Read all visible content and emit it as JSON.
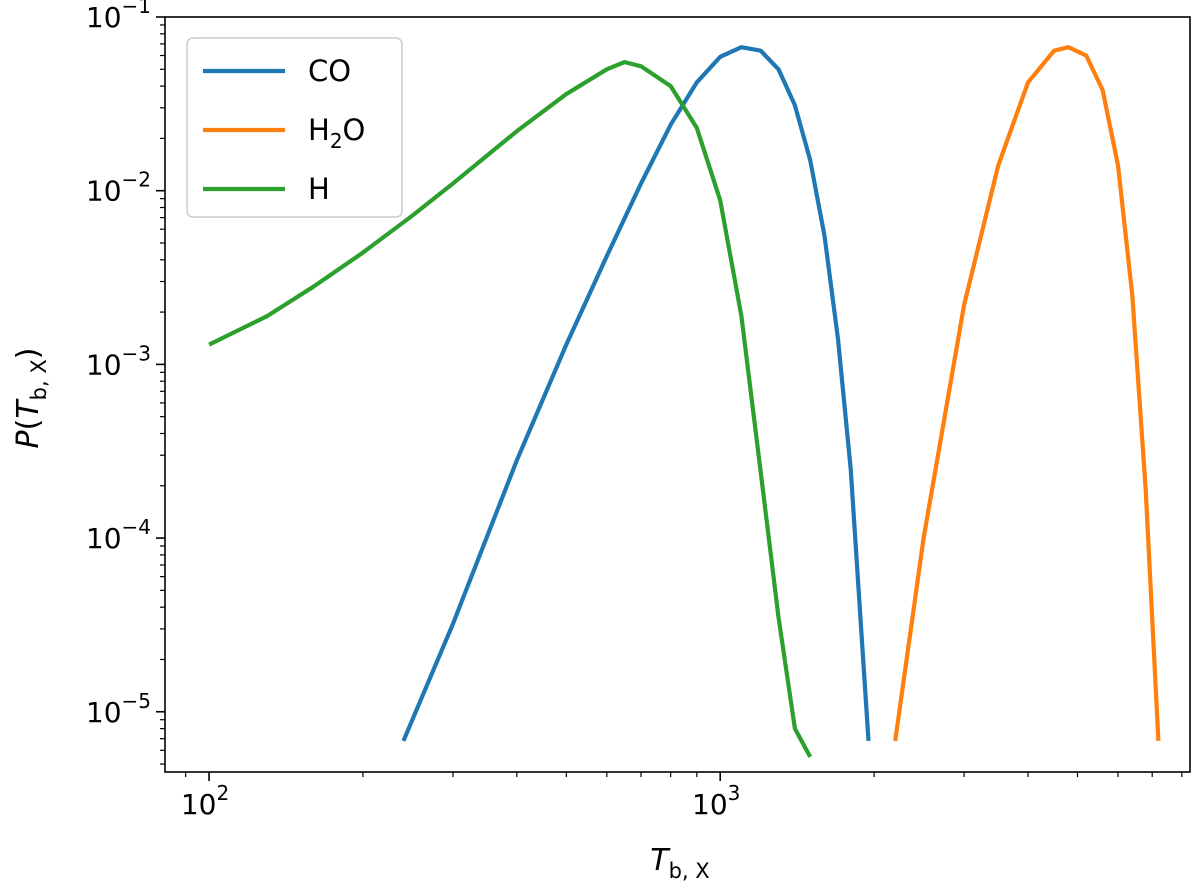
{
  "chart_data": {
    "type": "line",
    "xlabel": {
      "base": "T",
      "sub": "b, X"
    },
    "ylabel": {
      "func": "P(",
      "base": "T",
      "sub": "b, X",
      "close": ")"
    },
    "x_scale": "log",
    "y_scale": "log",
    "xlim": [
      82,
      8300
    ],
    "ylim": [
      4.5e-06,
      0.1
    ],
    "x_ticks": [
      {
        "value": 100,
        "base": "10",
        "exp": "2"
      },
      {
        "value": 1000,
        "base": "10",
        "exp": "3"
      }
    ],
    "y_ticks": [
      {
        "value": 1e-05,
        "base": "10",
        "exp": "−5"
      },
      {
        "value": 0.0001,
        "base": "10",
        "exp": "−4"
      },
      {
        "value": 0.001,
        "base": "10",
        "exp": "−3"
      },
      {
        "value": 0.01,
        "base": "10",
        "exp": "−2"
      },
      {
        "value": 0.1,
        "base": "10",
        "exp": "−1"
      }
    ],
    "grid": false,
    "legend_position": "top-left",
    "series": [
      {
        "name": "CO",
        "color": "#1f77b4",
        "x": [
          240,
          300,
          400,
          500,
          600,
          700,
          800,
          900,
          1000,
          1100,
          1200,
          1300,
          1400,
          1500,
          1600,
          1700,
          1800,
          1950
        ],
        "y": [
          6.8e-06,
          3.2e-05,
          0.00028,
          0.0013,
          0.0042,
          0.011,
          0.024,
          0.042,
          0.059,
          0.067,
          0.064,
          0.05,
          0.031,
          0.015,
          0.0055,
          0.0014,
          0.00025,
          6.8e-06
        ]
      },
      {
        "name": "H₂O",
        "color": "#ff7f0e",
        "x": [
          2200,
          2500,
          3000,
          3500,
          4000,
          4500,
          4800,
          5200,
          5600,
          6000,
          6400,
          6800,
          7200
        ],
        "y": [
          6.8e-06,
          0.0001,
          0.0022,
          0.014,
          0.042,
          0.064,
          0.067,
          0.06,
          0.038,
          0.014,
          0.0025,
          0.00019,
          6.8e-06
        ]
      },
      {
        "name": "H",
        "color": "#2ca02c",
        "x": [
          100,
          130,
          160,
          200,
          250,
          300,
          400,
          500,
          600,
          650,
          700,
          800,
          900,
          1000,
          1100,
          1200,
          1300,
          1400,
          1500
        ],
        "y": [
          0.0013,
          0.0019,
          0.0028,
          0.0044,
          0.0072,
          0.011,
          0.022,
          0.036,
          0.05,
          0.055,
          0.052,
          0.04,
          0.023,
          0.0088,
          0.0019,
          0.00024,
          3.5e-05,
          8e-06,
          5.5e-06
        ]
      }
    ],
    "legend_entries": [
      {
        "name": "CO",
        "color": "#1f77b4"
      },
      {
        "name": "H",
        "sub": "2",
        "tail": "O",
        "color": "#ff7f0e"
      },
      {
        "name": "H",
        "color": "#2ca02c"
      }
    ]
  }
}
